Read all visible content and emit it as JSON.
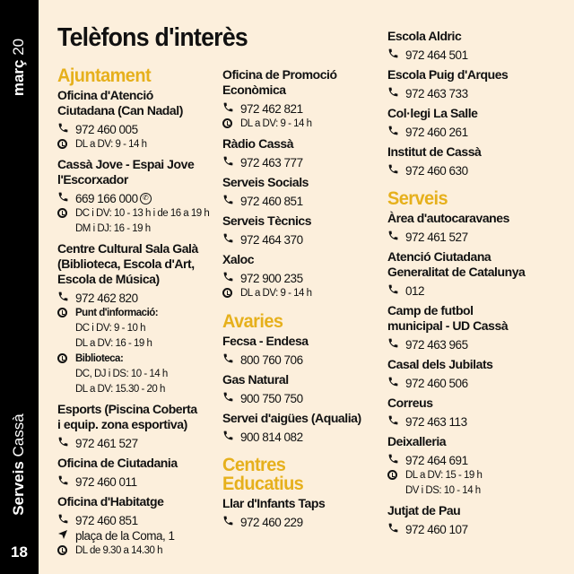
{
  "sidebar": {
    "month": "març",
    "year": "20",
    "section_bold": "Serveis",
    "section_light": "Cassà",
    "page": "18"
  },
  "title": "Telèfons d'interès",
  "columns": [
    [
      {
        "section": "Ajuntament"
      },
      {
        "name": [
          "Oficina d'Atenció",
          "Ciutadana (Can Nadal)"
        ],
        "lines": [
          {
            "icon": "phone",
            "text": "972 460 005"
          },
          {
            "icon": "clock",
            "text": "DL a DV: 9 - 14 h"
          }
        ]
      },
      {
        "name": [
          "Cassà Jove - Espai Jove",
          "l'Escorxador"
        ],
        "lines": [
          {
            "icon": "phone",
            "text": "669 166 000",
            "whatsapp": true
          },
          {
            "icon": "clock",
            "text": "DC i DV: 10 - 13 h i de 16 a 19 h"
          },
          {
            "icon": "sub",
            "text": "DM i DJ: 16 - 19 h"
          }
        ]
      },
      {
        "name": [
          "Centre Cultural Sala Galà",
          "(Biblioteca, Escola d'Art,",
          "Escola de Música)"
        ],
        "lines": [
          {
            "icon": "phone",
            "text": "972 462 820"
          },
          {
            "icon": "clock",
            "text": "Punt d'informació:",
            "bold": true
          },
          {
            "icon": "sub",
            "text": "DC i DV: 9 - 10 h"
          },
          {
            "icon": "sub",
            "text": "DL a DV: 16 - 19 h"
          },
          {
            "icon": "clock",
            "text": "Biblioteca:",
            "bold": true
          },
          {
            "icon": "sub",
            "text": "DC, DJ i DS: 10 - 14 h"
          },
          {
            "icon": "sub",
            "text": "DL a DV: 15.30 - 20 h"
          }
        ]
      },
      {
        "name": [
          "Esports (Piscina Coberta",
          "i equip. zona esportiva)"
        ],
        "lines": [
          {
            "icon": "phone",
            "text": "972 461 527"
          }
        ]
      },
      {
        "name": [
          "Oficina de Ciutadania"
        ],
        "lines": [
          {
            "icon": "phone",
            "text": "972 460 011"
          }
        ]
      },
      {
        "name": [
          "Oficina d'Habitatge"
        ],
        "lines": [
          {
            "icon": "phone",
            "text": "972 460 851"
          },
          {
            "icon": "location",
            "text": "plaça de la Coma, 1"
          },
          {
            "icon": "clock",
            "text": "DL de 9.30 a 14.30 h"
          }
        ]
      }
    ],
    [
      {
        "name": [
          "Oficina de Promoció",
          "Econòmica"
        ],
        "lines": [
          {
            "icon": "phone",
            "text": "972 462 821"
          },
          {
            "icon": "clock",
            "text": "DL a DV: 9 - 14 h"
          }
        ]
      },
      {
        "name": [
          "Ràdio Cassà"
        ],
        "lines": [
          {
            "icon": "phone",
            "text": "972 463 777"
          }
        ]
      },
      {
        "name": [
          "Serveis Socials"
        ],
        "lines": [
          {
            "icon": "phone",
            "text": "972 460 851"
          }
        ]
      },
      {
        "name": [
          "Serveis Tècnics"
        ],
        "lines": [
          {
            "icon": "phone",
            "text": "972 464 370"
          }
        ]
      },
      {
        "name": [
          "Xaloc"
        ],
        "lines": [
          {
            "icon": "phone",
            "text": "972 900 235"
          },
          {
            "icon": "clock",
            "text": "DL a DV: 9 - 14 h"
          }
        ]
      },
      {
        "section": "Avaries",
        "gap": true
      },
      {
        "name": [
          "Fecsa - Endesa"
        ],
        "lines": [
          {
            "icon": "phone",
            "text": "800 760 706"
          }
        ]
      },
      {
        "name": [
          "Gas Natural"
        ],
        "lines": [
          {
            "icon": "phone",
            "text": "900 750 750"
          }
        ]
      },
      {
        "name": [
          "Servei d'aigües (Aqualia)"
        ],
        "lines": [
          {
            "icon": "phone",
            "text": "900 814 082"
          }
        ]
      },
      {
        "section": "Centres Educatius",
        "gap": true
      },
      {
        "name": [
          "Llar d'Infants Taps"
        ],
        "lines": [
          {
            "icon": "phone",
            "text": "972 460 229"
          }
        ]
      }
    ],
    [
      {
        "name": [
          "Escola Aldric"
        ],
        "lines": [
          {
            "icon": "phone",
            "text": "972 464 501"
          }
        ]
      },
      {
        "name": [
          "Escola Puig d'Arques"
        ],
        "lines": [
          {
            "icon": "phone",
            "text": "972 463 733"
          }
        ]
      },
      {
        "name": [
          "Col·legi La Salle"
        ],
        "lines": [
          {
            "icon": "phone",
            "text": "972 460 261"
          }
        ]
      },
      {
        "name": [
          "Institut de Cassà"
        ],
        "lines": [
          {
            "icon": "phone",
            "text": "972 460 630"
          }
        ]
      },
      {
        "section": "Serveis",
        "gap": true
      },
      {
        "name": [
          "Àrea d'autocaravanes"
        ],
        "lines": [
          {
            "icon": "phone",
            "text": "972 461 527"
          }
        ]
      },
      {
        "name": [
          "Atenció Ciutadana",
          "Generalitat de Catalunya"
        ],
        "lines": [
          {
            "icon": "phone",
            "text": "012"
          }
        ]
      },
      {
        "name": [
          "Camp de futbol",
          "municipal - UD Cassà"
        ],
        "lines": [
          {
            "icon": "phone",
            "text": "972 463 965"
          }
        ]
      },
      {
        "name": [
          "Casal dels Jubilats"
        ],
        "lines": [
          {
            "icon": "phone",
            "text": "972 460 506"
          }
        ]
      },
      {
        "name": [
          "Correus"
        ],
        "lines": [
          {
            "icon": "phone",
            "text": "972 463 113"
          }
        ]
      },
      {
        "name": [
          "Deixalleria"
        ],
        "lines": [
          {
            "icon": "phone",
            "text": "972 464 691"
          },
          {
            "icon": "clock",
            "text": "DL a DV: 15 - 19 h"
          },
          {
            "icon": "sub",
            "text": "DV i DS: 10 - 14 h"
          }
        ]
      },
      {
        "name": [
          "Jutjat de Pau"
        ],
        "lines": [
          {
            "icon": "phone",
            "text": "972 460 107"
          }
        ]
      }
    ]
  ],
  "colors": {
    "accent": "#e6b01c",
    "background": "#fcefdc",
    "sidebar": "#000000"
  }
}
